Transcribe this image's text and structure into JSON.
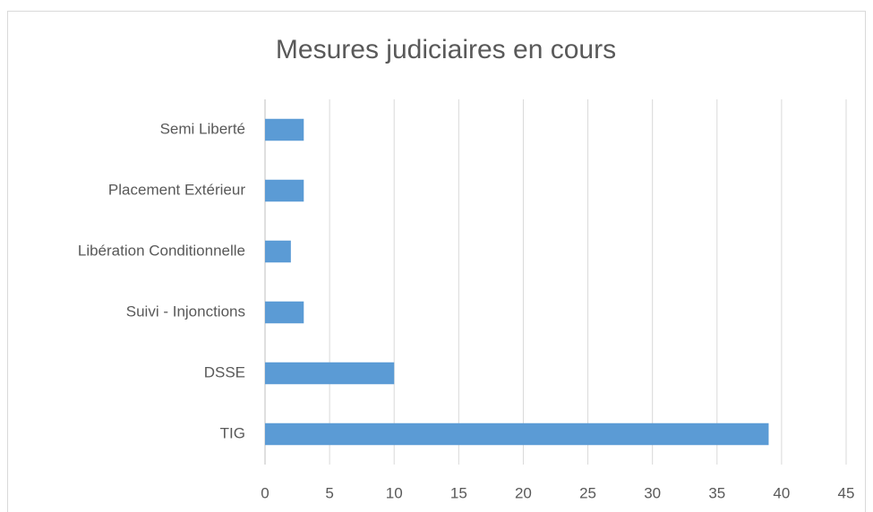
{
  "chart_data": {
    "type": "bar",
    "orientation": "horizontal",
    "title": "Mesures judiciaires en cours",
    "categories": [
      "TIG",
      "DSSE",
      "Suivi - Injonctions",
      "Libération Conditionnelle",
      "Placement Extérieur",
      "Semi Liberté"
    ],
    "values": [
      39,
      10,
      3,
      2,
      3,
      3
    ],
    "color": "#5b9bd5",
    "xlim": [
      0,
      45
    ],
    "xticks": [
      0,
      5,
      10,
      15,
      20,
      25,
      30,
      35,
      40,
      45
    ],
    "grid": true
  }
}
